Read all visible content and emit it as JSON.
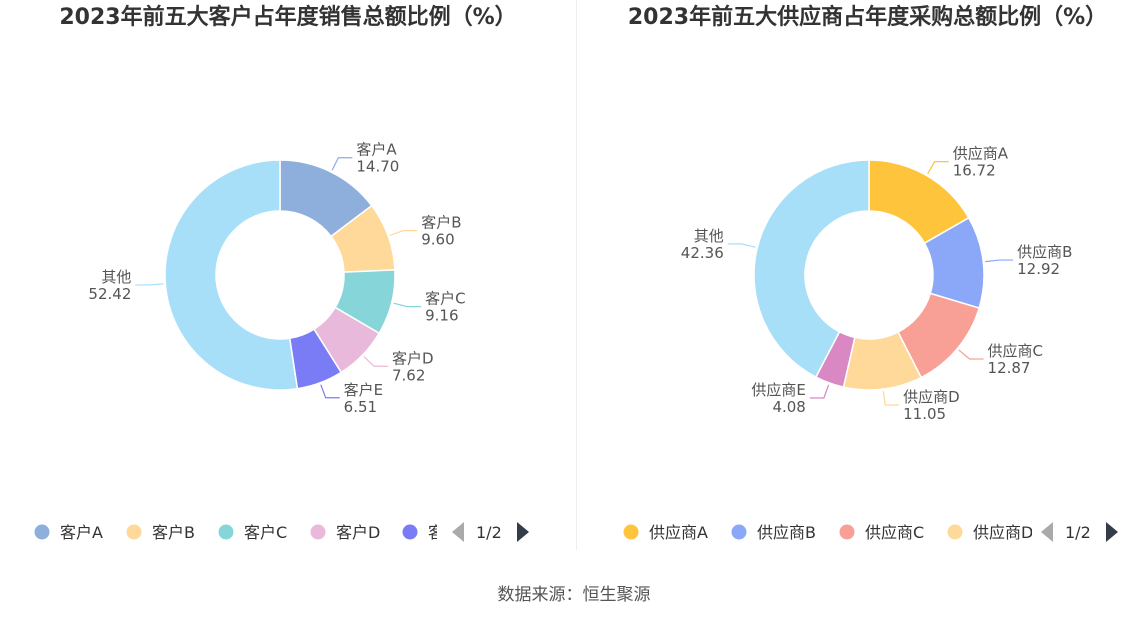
{
  "source": "数据来源：恒生聚源",
  "chart_data": [
    {
      "type": "pie",
      "title": "2023年前五大客户占年度销售总额比例（%）",
      "categories": [
        "客户A",
        "客户B",
        "客户C",
        "客户D",
        "客户E",
        "其他"
      ],
      "values": [
        14.7,
        9.6,
        9.16,
        7.62,
        6.51,
        52.42
      ],
      "value_labels": [
        "14.70",
        "9.60",
        "9.16",
        "7.62",
        "6.51",
        "52.42"
      ],
      "colors": [
        "#8eaedc",
        "#fed999",
        "#86d5d9",
        "#e8b9da",
        "#7a7cf5",
        "#a7dff9"
      ],
      "legend": {
        "position": "bottom",
        "items": [
          "客户A",
          "客户B",
          "客户C",
          "客户D",
          "客户E"
        ],
        "page": "1/2"
      }
    },
    {
      "type": "pie",
      "title": "2023年前五大供应商占年度采购总额比例（%）",
      "categories": [
        "供应商A",
        "供应商B",
        "供应商C",
        "供应商D",
        "供应商E",
        "其他"
      ],
      "values": [
        16.72,
        12.92,
        12.87,
        11.05,
        4.08,
        42.36
      ],
      "value_labels": [
        "16.72",
        "12.92",
        "12.87",
        "11.05",
        "4.08",
        "42.36"
      ],
      "colors": [
        "#fec53c",
        "#8aa7f8",
        "#f9a096",
        "#fed999",
        "#da88c3",
        "#a7dff9"
      ],
      "legend": {
        "position": "bottom",
        "items": [
          "供应商A",
          "供应商B",
          "供应商C",
          "供应商D"
        ],
        "page": "1/2"
      }
    }
  ]
}
